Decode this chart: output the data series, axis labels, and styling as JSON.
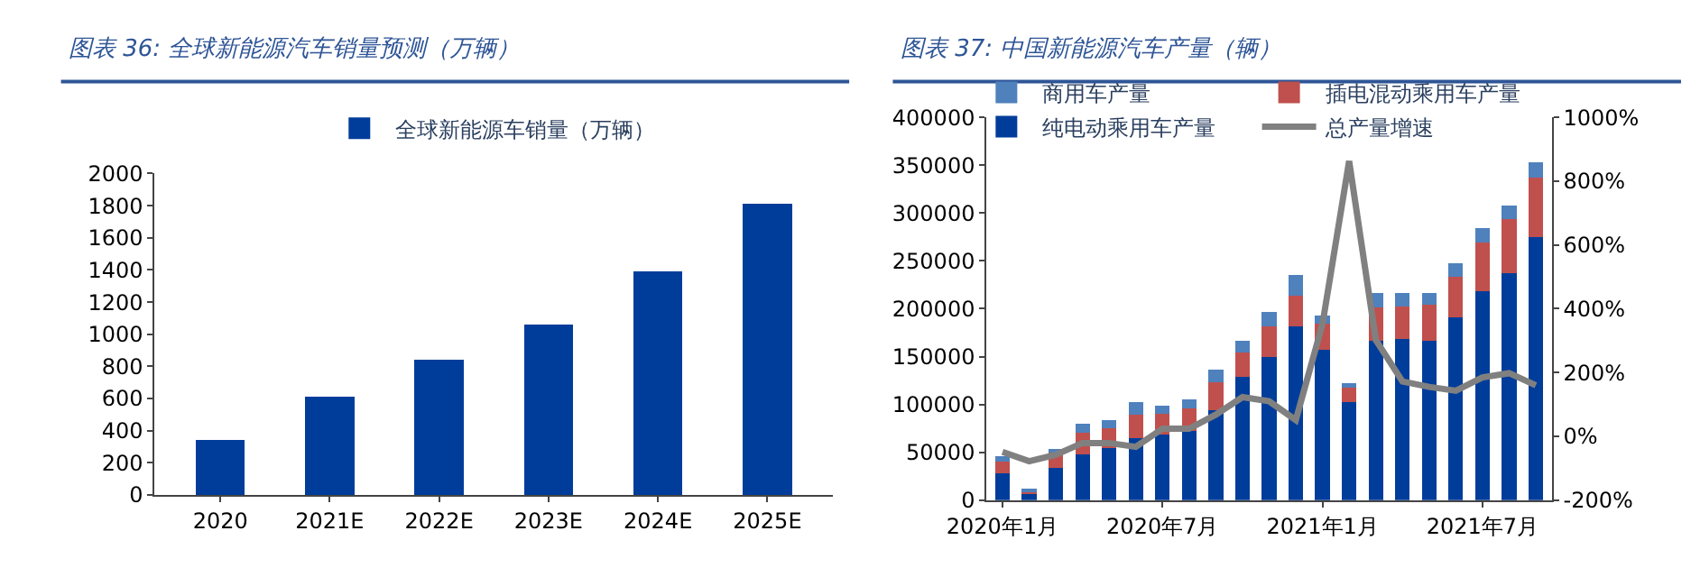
{
  "chart_data": [
    {
      "type": "bar",
      "title": "图表 36: 全球新能源汽车销量预测（万辆）",
      "categories": [
        "2020",
        "2021E",
        "2022E",
        "2023E",
        "2024E",
        "2025E"
      ],
      "series": [
        {
          "name": "全球新能源车销量（万辆）",
          "color": "#003d9b",
          "values": [
            340,
            610,
            840,
            1060,
            1390,
            1810
          ]
        }
      ],
      "ylim": [
        0,
        2000
      ],
      "yticks": [
        0,
        200,
        400,
        600,
        800,
        1000,
        1200,
        1400,
        1600,
        1800,
        2000
      ],
      "legend": "top"
    },
    {
      "type": "bar",
      "title": "图表 37: 中国新能源汽车产量（辆）",
      "stacked": true,
      "categories": [
        "2020年1月",
        null,
        null,
        null,
        null,
        null,
        "2020年7月",
        null,
        null,
        null,
        null,
        null,
        "2021年1月",
        null,
        null,
        null,
        null,
        null,
        "2021年7月",
        null,
        null
      ],
      "series": [
        {
          "name": "纯电动乘用车产量",
          "color": "#003d9b",
          "values": [
            28000,
            7000,
            34000,
            48000,
            54000,
            65000,
            69000,
            72000,
            94000,
            129000,
            150000,
            182000,
            157000,
            102000,
            167000,
            168000,
            167000,
            191000,
            218000,
            237000,
            275000
          ]
        },
        {
          "name": "插电混动乘用车产量",
          "color": "#c0504d",
          "values": [
            12000,
            2000,
            16000,
            22000,
            21000,
            24000,
            21000,
            24000,
            29000,
            25000,
            32000,
            32000,
            27000,
            16000,
            34000,
            34000,
            37000,
            42000,
            51000,
            57000,
            62000
          ]
        },
        {
          "name": "商用车产量",
          "color": "#4f81bd",
          "values": [
            6000,
            3000,
            2000,
            10000,
            9000,
            13000,
            9000,
            9000,
            13000,
            13000,
            15000,
            21000,
            9000,
            4000,
            15000,
            14000,
            12000,
            15000,
            15000,
            14000,
            16000
          ]
        },
        {
          "name": "总产量增速",
          "type": "line",
          "axis": "y2",
          "color": "#808080",
          "values": [
            -49,
            -78,
            -58,
            -21,
            -21,
            -33,
            24,
            24,
            68,
            123,
            110,
            51,
            352,
            863,
            302,
            172,
            155,
            143,
            185,
            198,
            160
          ]
        }
      ],
      "ylim": [
        0,
        400000
      ],
      "yticks": [
        0,
        50000,
        100000,
        150000,
        200000,
        250000,
        300000,
        350000,
        400000
      ],
      "y2lim": [
        -200,
        1000
      ],
      "y2ticks": [
        {
          "value": -200,
          "label": "-200%"
        },
        {
          "value": 0,
          "label": "0%"
        },
        {
          "value": 200,
          "label": "200%"
        },
        {
          "value": 400,
          "label": "400%"
        },
        {
          "value": 600,
          "label": "600%"
        },
        {
          "value": 800,
          "label": "800%"
        },
        {
          "value": 1000,
          "label": "1000%"
        }
      ],
      "legend": "top",
      "marker": "none",
      "line_style": "solid"
    }
  ]
}
